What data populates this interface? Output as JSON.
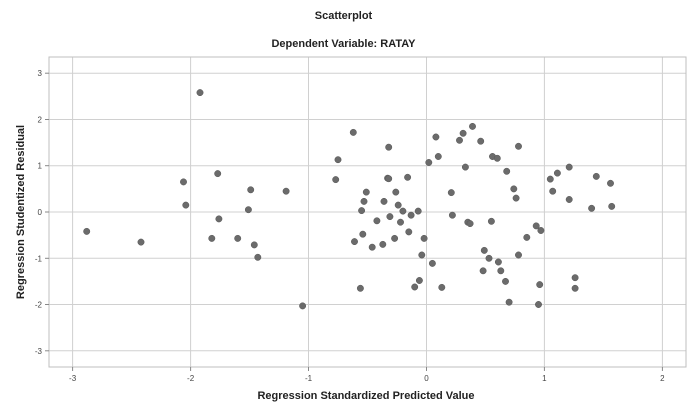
{
  "chart_data": {
    "type": "scatter",
    "title": "Scatterplot",
    "subtitle": "Dependent Variable: RATAY",
    "xlabel": "Regression Standardized Predicted Value",
    "ylabel": "Regression Studentized Residual",
    "xlim": [
      -3.2,
      2.2
    ],
    "ylim": [
      -3.35,
      3.35
    ],
    "xticks": [
      -3,
      -2,
      -1,
      0,
      1,
      2
    ],
    "yticks": [
      -3,
      -2,
      -1,
      0,
      1,
      2,
      3
    ],
    "grid": true,
    "point_color": "#6b6b6b",
    "points": [
      [
        -2.88,
        -0.42
      ],
      [
        -2.42,
        -0.65
      ],
      [
        -2.06,
        0.65
      ],
      [
        -2.04,
        0.15
      ],
      [
        -1.92,
        2.58
      ],
      [
        -1.82,
        -0.57
      ],
      [
        -1.77,
        0.83
      ],
      [
        -1.76,
        -0.15
      ],
      [
        -1.6,
        -0.57
      ],
      [
        -1.51,
        0.05
      ],
      [
        -1.49,
        0.48
      ],
      [
        -1.46,
        -0.71
      ],
      [
        -1.43,
        -0.98
      ],
      [
        -1.19,
        0.45
      ],
      [
        -1.05,
        -2.03
      ],
      [
        -0.77,
        0.7
      ],
      [
        -0.75,
        1.13
      ],
      [
        -0.62,
        1.72
      ],
      [
        -0.61,
        -0.64
      ],
      [
        -0.56,
        -1.65
      ],
      [
        -0.55,
        0.03
      ],
      [
        -0.54,
        -0.48
      ],
      [
        -0.53,
        0.23
      ],
      [
        -0.51,
        0.43
      ],
      [
        -0.46,
        -0.76
      ],
      [
        -0.42,
        -0.19
      ],
      [
        -0.37,
        -0.7
      ],
      [
        -0.36,
        0.23
      ],
      [
        -0.33,
        0.73
      ],
      [
        -0.32,
        1.4
      ],
      [
        -0.32,
        0.72
      ],
      [
        -0.31,
        -0.1
      ],
      [
        -0.27,
        -0.57
      ],
      [
        -0.26,
        0.43
      ],
      [
        -0.24,
        0.15
      ],
      [
        -0.22,
        -0.22
      ],
      [
        -0.2,
        0.02
      ],
      [
        -0.16,
        0.75
      ],
      [
        -0.15,
        -0.43
      ],
      [
        -0.13,
        -0.07
      ],
      [
        -0.1,
        -1.62
      ],
      [
        -0.07,
        0.02
      ],
      [
        -0.06,
        -1.48
      ],
      [
        -0.04,
        -0.93
      ],
      [
        -0.02,
        -0.57
      ],
      [
        0.02,
        1.07
      ],
      [
        0.05,
        -1.11
      ],
      [
        0.08,
        1.62
      ],
      [
        0.13,
        -1.63
      ],
      [
        0.1,
        1.2
      ],
      [
        0.21,
        0.42
      ],
      [
        0.22,
        -0.07
      ],
      [
        0.28,
        1.55
      ],
      [
        0.31,
        1.7
      ],
      [
        0.33,
        0.97
      ],
      [
        0.35,
        -0.22
      ],
      [
        0.37,
        -0.25
      ],
      [
        0.39,
        1.85
      ],
      [
        0.46,
        1.53
      ],
      [
        0.48,
        -1.27
      ],
      [
        0.49,
        -0.83
      ],
      [
        0.53,
        -1.0
      ],
      [
        0.55,
        -0.2
      ],
      [
        0.56,
        1.2
      ],
      [
        0.6,
        1.16
      ],
      [
        0.61,
        -1.08
      ],
      [
        0.63,
        -1.27
      ],
      [
        0.67,
        -1.5
      ],
      [
        0.68,
        0.88
      ],
      [
        0.7,
        -1.95
      ],
      [
        0.74,
        0.5
      ],
      [
        0.76,
        0.3
      ],
      [
        0.78,
        -0.93
      ],
      [
        0.78,
        1.42
      ],
      [
        0.85,
        -0.55
      ],
      [
        0.93,
        -0.3
      ],
      [
        0.95,
        -2.0
      ],
      [
        0.96,
        -1.57
      ],
      [
        0.97,
        -0.4
      ],
      [
        1.05,
        0.71
      ],
      [
        1.07,
        0.45
      ],
      [
        1.11,
        0.84
      ],
      [
        1.21,
        0.97
      ],
      [
        1.21,
        0.27
      ],
      [
        1.26,
        -1.42
      ],
      [
        1.26,
        -1.65
      ],
      [
        1.4,
        0.08
      ],
      [
        1.44,
        0.77
      ],
      [
        1.56,
        0.62
      ],
      [
        1.57,
        0.12
      ]
    ]
  }
}
